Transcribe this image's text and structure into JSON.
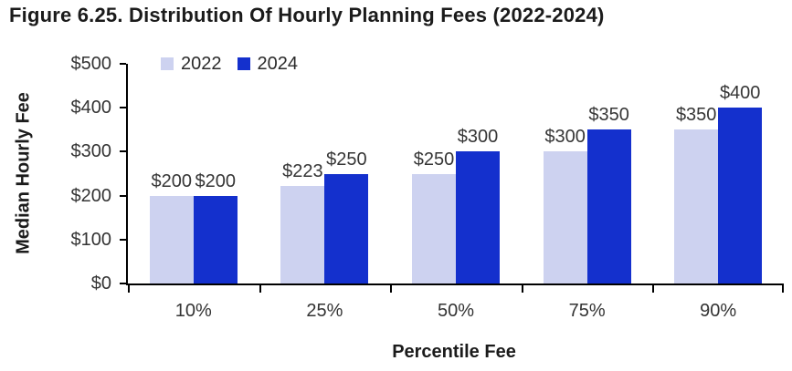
{
  "figure": {
    "title": "Figure 6.25. Distribution Of Hourly Planning Fees (2022-2024)"
  },
  "chart_data": {
    "type": "bar",
    "title": "Figure 6.25. Distribution Of Hourly Planning Fees (2022-2024)",
    "categories": [
      "10%",
      "25%",
      "50%",
      "75%",
      "90%"
    ],
    "series": [
      {
        "name": "2022",
        "color": "#cdd2f0",
        "values": [
          200,
          223,
          250,
          300,
          350
        ],
        "labels": [
          "$200",
          "$223",
          "$250",
          "$300",
          "$350"
        ]
      },
      {
        "name": "2024",
        "color": "#1430cd",
        "values": [
          200,
          250,
          300,
          350,
          400
        ],
        "labels": [
          "$200",
          "$250",
          "$300",
          "$350",
          "$400"
        ]
      }
    ],
    "xlabel": "Percentile Fee",
    "ylabel": "Median Hourly Fee",
    "ylim": [
      0,
      500
    ],
    "yticks": [
      0,
      100,
      200,
      300,
      400,
      500
    ],
    "ytick_labels": [
      "$0",
      "$100",
      "$200",
      "$300",
      "$400",
      "$500"
    ],
    "grid": false,
    "legend_position": "top-left",
    "colors": {
      "axis": "#000000",
      "tick_text": "#333333",
      "data_label_text": "#363636",
      "title_text": "#1b1b1b"
    }
  }
}
